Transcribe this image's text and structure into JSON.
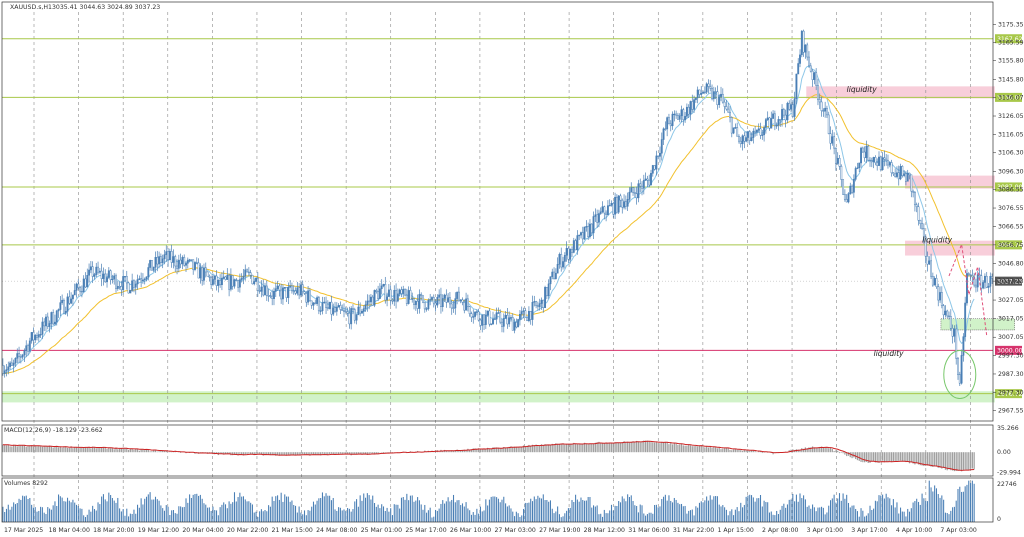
{
  "header": {
    "symbol": "XAUUSD.s,H1",
    "ohlc": "3035.41 3044.63 3024.89 3037.23"
  },
  "colors": {
    "bull": "#4a7fb5",
    "bear": "#4a7fb5",
    "ma_fast": "#8ec7e8",
    "ma_slow": "#f2c12e",
    "level": "#a8c84a",
    "red_level": "#d6336c",
    "zone_pink": "#f7c6d4",
    "zone_green": "#c9f0c0",
    "macd_signal": "#cc2222",
    "macd_hist": "#a0a0a0",
    "volume": "#4a7fb5"
  },
  "chart_data": [
    {
      "type": "candlestick",
      "name": "price",
      "y_ticks": [
        "3175.35",
        "3165.59",
        "3155.80",
        "3145.80",
        "3136.07",
        "3126.05",
        "3116.05",
        "3106.30",
        "3096.30",
        "3086.55",
        "3076.55",
        "3066.55",
        "3056.75",
        "3046.80",
        "3037.23",
        "3027.05",
        "3017.05",
        "3007.05",
        "2997.30",
        "2987.30",
        "2977.30",
        "2967.55"
      ],
      "x_labels": [
        "17 Mar 2025",
        "18 Mar 04:00",
        "18 Mar 20:00",
        "19 Mar 12:00",
        "20 Mar 04:00",
        "20 Mar 22:00",
        "21 Mar 15:00",
        "24 Mar 08:00",
        "25 Mar 01:00",
        "25 Mar 17:00",
        "26 Mar 10:00",
        "27 Mar 03:00",
        "27 Mar 19:00",
        "28 Mar 12:00",
        "31 Mar 06:00",
        "31 Mar 22:00",
        "1 Apr 15:00",
        "2 Apr 08:00",
        "3 Apr 01:00",
        "3 Apr 17:00",
        "4 Apr 10:00",
        "7 Apr 03:00"
      ],
      "ylim": [
        2962,
        3182
      ],
      "waypoints": [
        [
          0,
          2992
        ],
        [
          5,
          2990
        ],
        [
          15,
          3005
        ],
        [
          30,
          3020
        ],
        [
          50,
          3042
        ],
        [
          70,
          3035
        ],
        [
          90,
          3050
        ],
        [
          105,
          3045
        ],
        [
          120,
          3035
        ],
        [
          138,
          3040
        ],
        [
          150,
          3030
        ],
        [
          165,
          3032
        ],
        [
          180,
          3022
        ],
        [
          195,
          3018
        ],
        [
          210,
          3032
        ],
        [
          225,
          3028
        ],
        [
          240,
          3025
        ],
        [
          255,
          3028
        ],
        [
          265,
          3018
        ],
        [
          285,
          3015
        ],
        [
          300,
          3025
        ],
        [
          310,
          3048
        ],
        [
          322,
          3060
        ],
        [
          335,
          3075
        ],
        [
          345,
          3080
        ],
        [
          360,
          3092
        ],
        [
          370,
          3122
        ],
        [
          380,
          3128
        ],
        [
          390,
          3140
        ],
        [
          400,
          3135
        ],
        [
          410,
          3112
        ],
        [
          420,
          3115
        ],
        [
          430,
          3125
        ],
        [
          440,
          3130
        ],
        [
          445,
          3168
        ],
        [
          452,
          3145
        ],
        [
          460,
          3120
        ],
        [
          470,
          3078
        ],
        [
          478,
          3108
        ],
        [
          490,
          3100
        ],
        [
          505,
          3092
        ],
        [
          515,
          3048
        ],
        [
          525,
          3020
        ],
        [
          530,
          3008
        ],
        [
          533,
          2978
        ],
        [
          537,
          3040
        ],
        [
          542,
          3037
        ]
      ],
      "levels": [
        {
          "label": "3167.62",
          "value": 3167.62,
          "color": "#a8c84a"
        },
        {
          "label": "3136.07",
          "value": 3136.07,
          "color": "#a8c84a"
        },
        {
          "label": "3087.90",
          "value": 3087.9,
          "color": "#a8c84a"
        },
        {
          "label": "3056.74",
          "value": 3056.74,
          "color": "#a8c84a"
        },
        {
          "label": "3000.00",
          "value": 3000.0,
          "color": "#d6336c"
        },
        {
          "label": "2976.72",
          "value": 2976.72,
          "color": "#a8c84a"
        }
      ],
      "current": {
        "label": "3037.23",
        "value": 3037.23
      },
      "zones": [
        {
          "kind": "pink",
          "x0": 448,
          "x1": 552,
          "y0": 3135.5,
          "y1": 3142
        },
        {
          "kind": "pink",
          "x0": 503,
          "x1": 552,
          "y0": 3087,
          "y1": 3094
        },
        {
          "kind": "pink",
          "x0": 503,
          "x1": 552,
          "y0": 3051,
          "y1": 3059
        },
        {
          "kind": "green",
          "x0": 0,
          "x1": 552,
          "y0": 2972,
          "y1": 2978
        },
        {
          "kind": "green",
          "x0": 523,
          "x1": 563,
          "y0": 3011,
          "y1": 3017
        }
      ],
      "annotations": [
        {
          "text": "liquidity",
          "x": 470,
          "y": 3139
        },
        {
          "text": "liquidity",
          "x": 512,
          "y": 3058
        },
        {
          "text": "liquidity",
          "x": 485,
          "y": 2997
        }
      ],
      "forecast_path": [
        [
          527,
          3040
        ],
        [
          534,
          3057
        ],
        [
          538,
          3030
        ],
        [
          543,
          3045
        ],
        [
          548,
          3008
        ]
      ]
    },
    {
      "type": "bar",
      "name": "MACD",
      "title": "MACD(12,26,9) -18.129 -23.662",
      "y_ticks": [
        "35.266",
        "0.00",
        "-29.994"
      ],
      "ylim": [
        -35,
        40
      ],
      "waypoints": [
        [
          0,
          10
        ],
        [
          60,
          6
        ],
        [
          120,
          -3
        ],
        [
          160,
          -4
        ],
        [
          200,
          -3
        ],
        [
          260,
          4
        ],
        [
          310,
          12
        ],
        [
          360,
          16
        ],
        [
          400,
          6
        ],
        [
          430,
          -2
        ],
        [
          450,
          8
        ],
        [
          460,
          6
        ],
        [
          480,
          -15
        ],
        [
          500,
          -13
        ],
        [
          520,
          -22
        ],
        [
          530,
          -28
        ],
        [
          542,
          -24
        ]
      ]
    },
    {
      "type": "bar",
      "name": "volumes",
      "title": "Volumes 8292",
      "y_ticks": [
        "22746",
        "0"
      ],
      "ylim": [
        0,
        25000
      ]
    }
  ]
}
